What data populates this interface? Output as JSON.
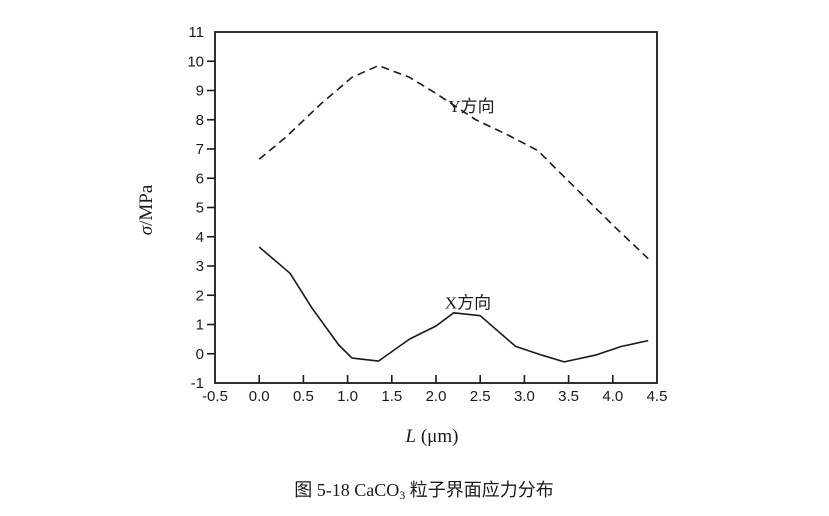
{
  "page": {
    "background": "#ffffff"
  },
  "figure_caption": {
    "prefix": "图 5-18 CaCO",
    "subscript": "3",
    "suffix": " 粒子界面应力分布"
  },
  "chart_data": {
    "type": "line",
    "title": "",
    "xlabel": {
      "italic": "L",
      "rest": " (μm)"
    },
    "ylabel": {
      "italic": "σ",
      "rest": "/MPa"
    },
    "xlim": [
      -0.5,
      4.5
    ],
    "ylim": [
      -1,
      11
    ],
    "grid": false,
    "legend_position": "inline-curve-labels",
    "axis_color": "#1a1a1a",
    "background": "#ffffff",
    "xticks": {
      "values": [
        -0.5,
        0.0,
        0.5,
        1.0,
        1.5,
        2.0,
        2.5,
        3.0,
        3.5,
        4.0,
        4.5
      ],
      "labels": [
        "-0.5",
        "0.0",
        "0.5",
        "1.0",
        "1.5",
        "2.0",
        "2.5",
        "3.0",
        "3.5",
        "4.0",
        "4.5"
      ]
    },
    "yticks": {
      "values": [
        -1,
        0,
        1,
        2,
        3,
        4,
        5,
        6,
        7,
        8,
        9,
        10,
        11
      ],
      "labels": [
        "-1",
        "0",
        "1",
        "2",
        "3",
        "4",
        "5",
        "6",
        "7",
        "8",
        "9",
        "10",
        "11"
      ]
    },
    "series": [
      {
        "name": "Y方向",
        "line_style": "dashed",
        "color": "#1a1a1a",
        "label_pos": [
          2.14,
          8.26
        ],
        "points": [
          [
            0.0,
            6.65
          ],
          [
            0.3,
            7.4
          ],
          [
            0.7,
            8.55
          ],
          [
            1.05,
            9.45
          ],
          [
            1.35,
            9.85
          ],
          [
            1.7,
            9.45
          ],
          [
            2.0,
            8.9
          ],
          [
            2.45,
            8.0
          ],
          [
            2.8,
            7.5
          ],
          [
            3.15,
            6.95
          ],
          [
            3.55,
            5.75
          ],
          [
            4.0,
            4.4
          ],
          [
            4.4,
            3.25
          ]
        ]
      },
      {
        "name": "X方向",
        "line_style": "solid",
        "color": "#1a1a1a",
        "label_pos": [
          2.1,
          1.55
        ],
        "points": [
          [
            0.0,
            3.65
          ],
          [
            0.35,
            2.75
          ],
          [
            0.6,
            1.55
          ],
          [
            0.9,
            0.3
          ],
          [
            1.05,
            -0.15
          ],
          [
            1.35,
            -0.25
          ],
          [
            1.7,
            0.5
          ],
          [
            2.0,
            0.95
          ],
          [
            2.2,
            1.4
          ],
          [
            2.5,
            1.3
          ],
          [
            2.9,
            0.25
          ],
          [
            3.2,
            -0.05
          ],
          [
            3.45,
            -0.28
          ],
          [
            3.8,
            -0.05
          ],
          [
            4.1,
            0.25
          ],
          [
            4.4,
            0.45
          ]
        ]
      }
    ]
  }
}
